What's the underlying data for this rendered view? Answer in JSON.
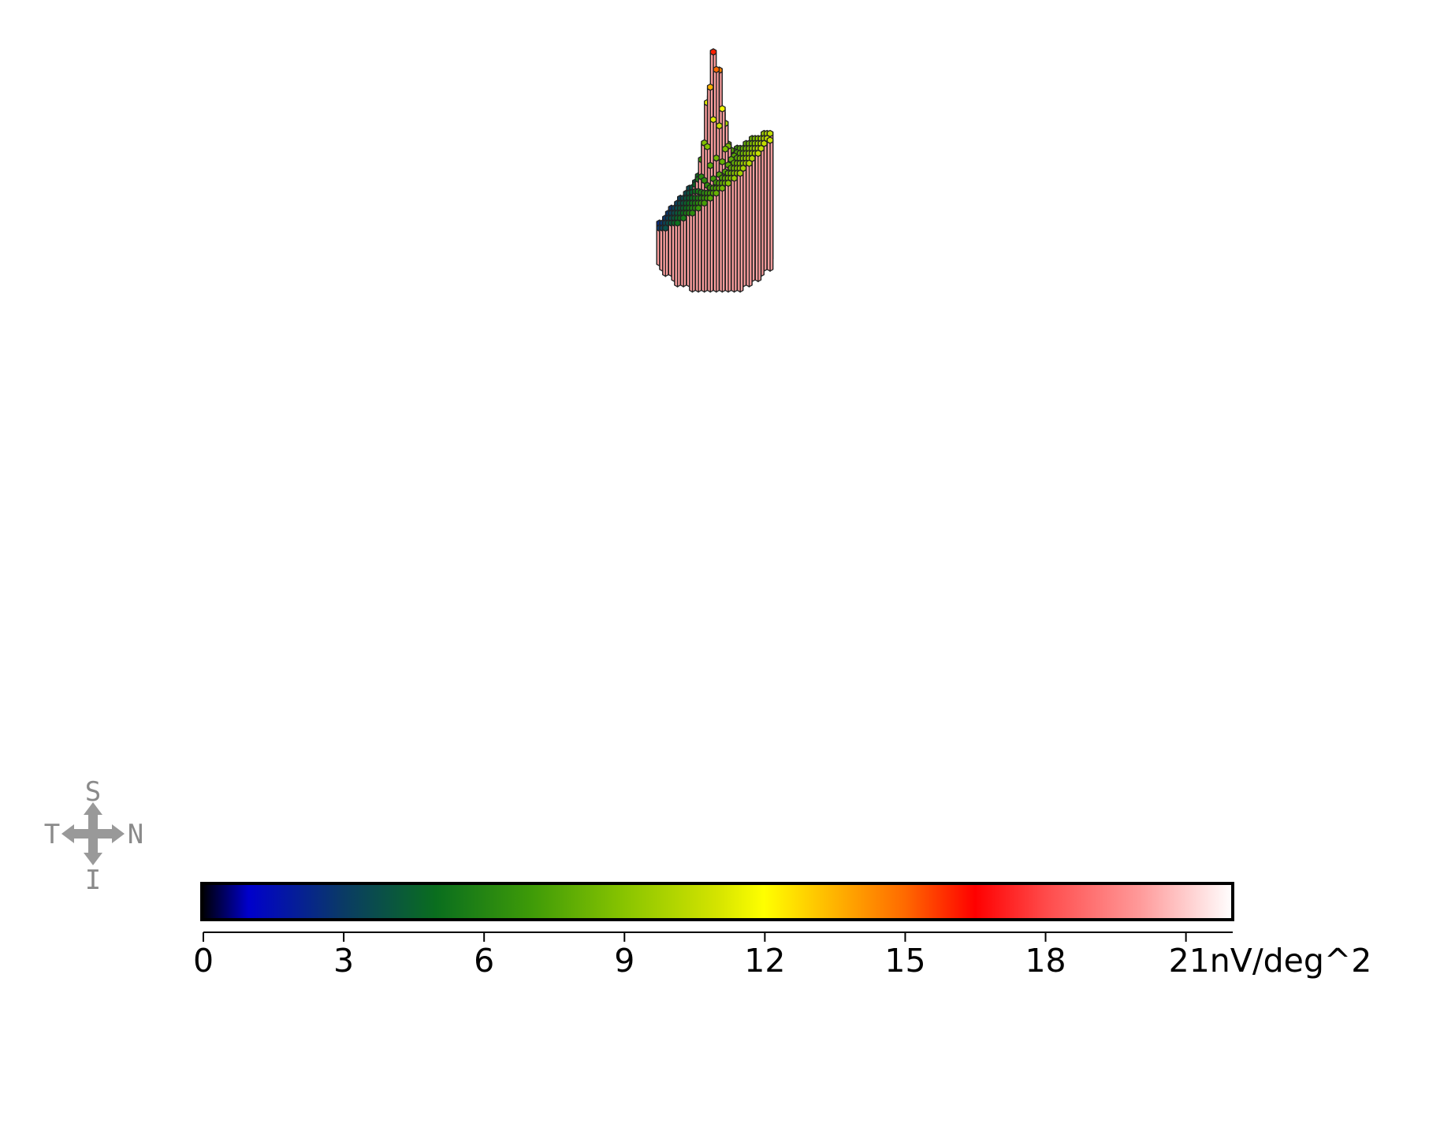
{
  "chart_data": {
    "type": "heatmap",
    "title": "",
    "orientation": {
      "top": "S",
      "left": "T",
      "right": "N",
      "bottom": "I"
    },
    "colorbar": {
      "ticks": [
        "0",
        "3",
        "6",
        "9",
        "12",
        "15",
        "18",
        "21nV/deg^2"
      ],
      "tick_values": [
        0,
        3,
        6,
        9,
        12,
        15,
        18,
        21
      ],
      "range": [
        0,
        22
      ],
      "stops": [
        [
          0,
          "#000000"
        ],
        [
          1,
          "#0000cc"
        ],
        [
          3,
          "#0a3a66"
        ],
        [
          5,
          "#0a6e1e"
        ],
        [
          7,
          "#3d9a08"
        ],
        [
          9,
          "#88c400"
        ],
        [
          11,
          "#d4e400"
        ],
        [
          12,
          "#ffff00"
        ],
        [
          13.5,
          "#ffb400"
        ],
        [
          15,
          "#ff6a00"
        ],
        [
          16.5,
          "#ff0000"
        ],
        [
          18,
          "#ff4a4a"
        ],
        [
          20,
          "#ff9999"
        ],
        [
          22,
          "#ffffff"
        ]
      ]
    },
    "peak_value": 18.5,
    "hex_grid": {
      "rows": 12,
      "columns": 19
    },
    "wall_color": "#ffa0a0",
    "outline_color": "#222222"
  }
}
